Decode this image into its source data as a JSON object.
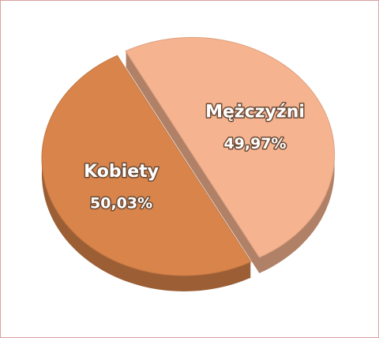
{
  "chart_data": {
    "type": "pie",
    "categories": [
      "Mężczyźni",
      "Kobiety"
    ],
    "values": [
      49.97,
      50.03
    ],
    "value_labels": [
      "49,97%",
      "50,03%"
    ],
    "colors": [
      "#f5b38f",
      "#d9844a"
    ]
  }
}
